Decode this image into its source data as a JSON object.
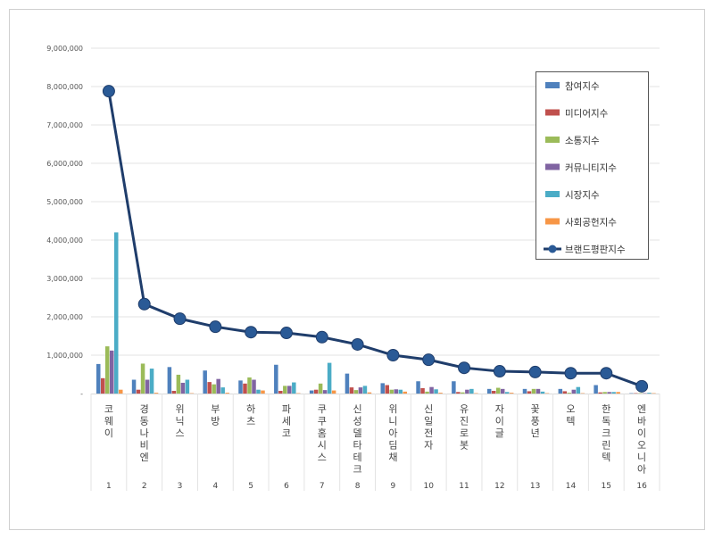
{
  "chart_data": {
    "type": "bar+line",
    "title": "",
    "xlabel": "",
    "ylabel": "",
    "ylim": [
      0,
      9000000
    ],
    "yticks": [
      "-",
      "1,000,000",
      "2,000,000",
      "3,000,000",
      "4,000,000",
      "5,000,000",
      "6,000,000",
      "7,000,000",
      "8,000,000",
      "9,000,000"
    ],
    "grid": true,
    "legend_position": "right",
    "categories": [
      "코웨이",
      "경동나비엔",
      "위닉스",
      "부방",
      "하츠",
      "파세코",
      "쿠쿠홈시스",
      "신성델타테크",
      "위니아딤채",
      "신일전자",
      "유진로봇",
      "자이글",
      "꽃풍년",
      "오텍",
      "한독크린텍",
      "엔바이오니아"
    ],
    "ranks": [
      "1",
      "2",
      "3",
      "4",
      "5",
      "6",
      "7",
      "8",
      "9",
      "10",
      "11",
      "12",
      "13",
      "14",
      "15",
      "16"
    ],
    "series": [
      {
        "name": "참여지수",
        "type": "bar",
        "color": "#4F81BD",
        "values": [
          770000,
          360000,
          690000,
          600000,
          340000,
          750000,
          80000,
          520000,
          270000,
          320000,
          320000,
          120000,
          120000,
          120000,
          220000,
          10000
        ]
      },
      {
        "name": "미디어지수",
        "type": "bar",
        "color": "#C0504D",
        "values": [
          400000,
          100000,
          70000,
          300000,
          260000,
          70000,
          100000,
          160000,
          220000,
          140000,
          40000,
          70000,
          60000,
          60000,
          30000,
          10000
        ]
      },
      {
        "name": "소통지수",
        "type": "bar",
        "color": "#9BBB59",
        "values": [
          1230000,
          780000,
          490000,
          240000,
          420000,
          200000,
          260000,
          90000,
          100000,
          50000,
          30000,
          150000,
          120000,
          20000,
          40000,
          10000
        ]
      },
      {
        "name": "커뮤니티지수",
        "type": "bar",
        "color": "#8064A2",
        "values": [
          1120000,
          360000,
          280000,
          380000,
          360000,
          200000,
          90000,
          160000,
          110000,
          170000,
          100000,
          120000,
          120000,
          100000,
          40000,
          10000
        ]
      },
      {
        "name": "시장지수",
        "type": "bar",
        "color": "#4BACC6",
        "values": [
          4200000,
          650000,
          360000,
          160000,
          100000,
          290000,
          800000,
          200000,
          100000,
          110000,
          120000,
          40000,
          50000,
          170000,
          40000,
          20000
        ]
      },
      {
        "name": "사회공헌지수",
        "type": "bar",
        "color": "#F79646",
        "values": [
          100000,
          20000,
          10000,
          20000,
          80000,
          10000,
          80000,
          30000,
          50000,
          20000,
          10000,
          20000,
          10000,
          10000,
          40000,
          10000
        ]
      },
      {
        "name": "브랜드평판지수",
        "type": "line",
        "color": "#1F3D6B",
        "values": [
          7880000,
          2330000,
          1950000,
          1740000,
          1600000,
          1580000,
          1470000,
          1280000,
          1000000,
          880000,
          670000,
          580000,
          560000,
          530000,
          530000,
          190000
        ]
      }
    ]
  }
}
